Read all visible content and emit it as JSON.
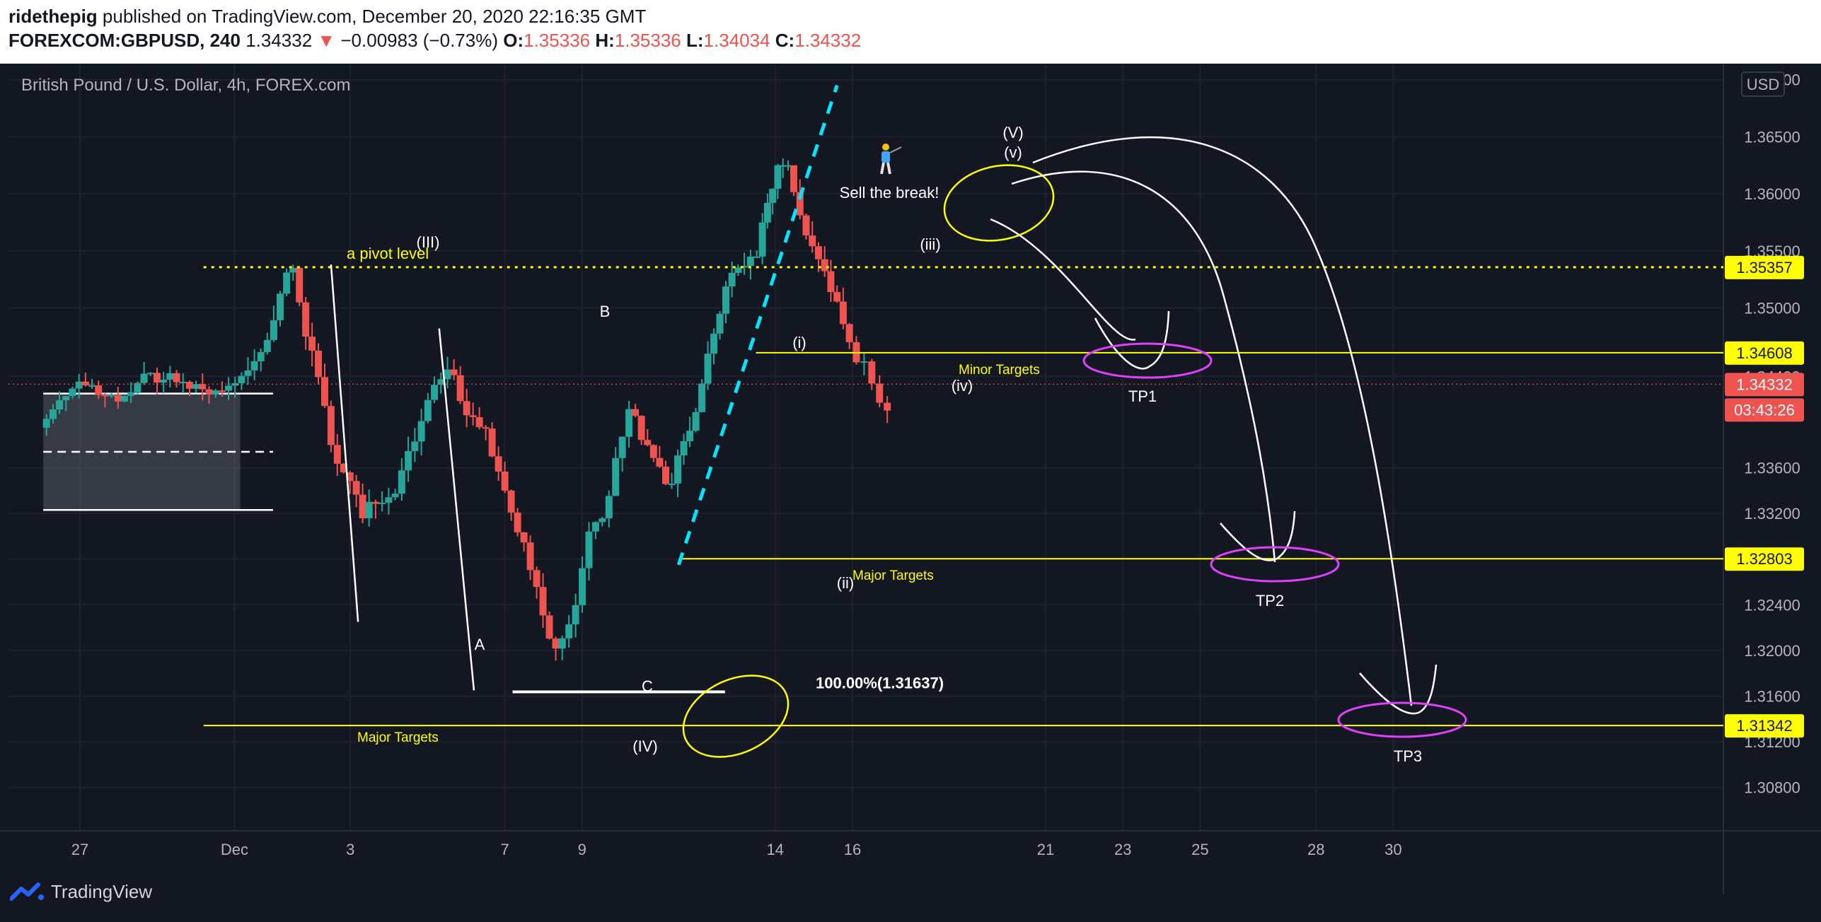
{
  "header": {
    "author": "ridethepig",
    "published": "published on TradingView.com, December 20, 2020 22:16:35 GMT",
    "symbol": "FOREXCOM:GBPUSD, 240",
    "last": "1.34332",
    "change_arrow": "▼",
    "change": "−0.00983 (−0.73%)",
    "o_label": "O:",
    "o_val": "1.35336",
    "h_label": "H:",
    "h_val": "1.35336",
    "l_label": "L:",
    "l_val": "1.34034",
    "c_label": "C:",
    "c_val": "1.34332"
  },
  "footer": {
    "brand": "TradingView",
    "logo_icon": "tradingview-logo-icon"
  },
  "colors": {
    "background": "#131722",
    "up": "#26a69a",
    "down": "#ef5350",
    "annotation": "#ffffff",
    "target": "#ffff00",
    "magenta": "#e040fb",
    "trend": "#00e5ff"
  },
  "chart_data": {
    "type": "candlestick",
    "title": "British Pound / U.S. Dollar, 4h, FOREX.com",
    "currency": "USD",
    "y_range": [
      1.3042,
      1.3714
    ],
    "y_ticks": [
      "1.37000",
      "1.36500",
      "1.36000",
      "1.35500",
      "1.35000",
      "1.34400",
      "1.33600",
      "1.33200",
      "1.32800",
      "1.32400",
      "1.32000",
      "1.31600",
      "1.31200",
      "1.30800"
    ],
    "x_ticks": [
      {
        "label": "27",
        "day": 0
      },
      {
        "label": "Dec",
        "day": 4
      },
      {
        "label": "3",
        "day": 7
      },
      {
        "label": "7",
        "day": 11
      },
      {
        "label": "9",
        "day": 13
      },
      {
        "label": "14",
        "day": 18
      },
      {
        "label": "16",
        "day": 20
      },
      {
        "label": "21",
        "day": 25
      },
      {
        "label": "23",
        "day": 27
      },
      {
        "label": "25",
        "day": 29
      },
      {
        "label": "28",
        "day": 32
      },
      {
        "label": "30",
        "day": 34
      }
    ],
    "price_labels": [
      {
        "text": "1.35357",
        "value": 1.35357,
        "kind": "pivot"
      },
      {
        "text": "1.34608",
        "value": 1.34608,
        "kind": "target"
      },
      {
        "text": "1.34332",
        "value": 1.34332,
        "kind": "last"
      },
      {
        "text": "03:43:26",
        "kind": "countdown"
      },
      {
        "text": "1.32803",
        "value": 1.32803,
        "kind": "target"
      },
      {
        "text": "1.31342",
        "value": 1.31342,
        "kind": "target"
      }
    ],
    "pivot_level": 1.35357,
    "target_levels": [
      1.34608,
      1.32803,
      1.31342
    ],
    "fib_level": 1.31637,
    "candle_segments": [
      {
        "from_day": -0.95,
        "to_day": 4.1,
        "n": 30,
        "start": 1.3395,
        "seed": 3,
        "volatility": 0.0018,
        "drift": 0.0,
        "lo": 1.3315,
        "hi": 1.3455
      },
      {
        "from_day": 4.1,
        "to_day": 5.6,
        "n": 9,
        "start": 1.341,
        "seed": 7,
        "volatility": 0.0022,
        "drift": 0.0014,
        "lo": 1.3405,
        "hi": 1.3535
      },
      {
        "from_day": 5.6,
        "to_day": 7.4,
        "n": 11,
        "start": 1.352,
        "seed": 11,
        "volatility": 0.0024,
        "drift": -0.0018,
        "lo": 1.3225,
        "hi": 1.3535
      },
      {
        "from_day": 7.4,
        "to_day": 9.6,
        "n": 13,
        "start": 1.327,
        "seed": 5,
        "volatility": 0.0022,
        "drift": 0.001,
        "lo": 1.326,
        "hi": 1.349
      },
      {
        "from_day": 9.6,
        "to_day": 12.4,
        "n": 17,
        "start": 1.347,
        "seed": 9,
        "volatility": 0.0022,
        "drift": -0.0013,
        "lo": 1.314,
        "hi": 1.348
      },
      {
        "from_day": 12.4,
        "to_day": 14.3,
        "n": 11,
        "start": 1.321,
        "seed": 2,
        "volatility": 0.0024,
        "drift": 0.002,
        "lo": 1.3185,
        "hi": 1.3445
      },
      {
        "from_day": 14.3,
        "to_day": 15.4,
        "n": 7,
        "start": 1.34,
        "seed": 13,
        "volatility": 0.0018,
        "drift": -0.0012,
        "lo": 1.3285,
        "hi": 1.341
      },
      {
        "from_day": 15.4,
        "to_day": 16.8,
        "n": 9,
        "start": 1.33,
        "seed": 17,
        "volatility": 0.0022,
        "drift": 0.0024,
        "lo": 1.329,
        "hi": 1.352
      },
      {
        "from_day": 16.8,
        "to_day": 17.6,
        "n": 5,
        "start": 1.3495,
        "seed": 19,
        "volatility": 0.002,
        "drift": 0.0008,
        "lo": 1.347,
        "hi": 1.3545
      },
      {
        "from_day": 17.6,
        "to_day": 18.4,
        "n": 6,
        "start": 1.351,
        "seed": 23,
        "volatility": 0.002,
        "drift": 0.0016,
        "lo": 1.35,
        "hi": 1.3625
      },
      {
        "from_day": 18.4,
        "to_day": 20.0,
        "n": 10,
        "start": 1.36,
        "seed": 29,
        "volatility": 0.0022,
        "drift": -0.0018,
        "lo": 1.347,
        "hi": 1.3615
      },
      {
        "from_day": 20.0,
        "to_day": 21.0,
        "n": 5,
        "start": 1.35,
        "seed": 31,
        "volatility": 0.0022,
        "drift": -0.001,
        "lo": 1.34,
        "hi": 1.354
      }
    ],
    "annotations": {
      "pivot_text": "a pivot level",
      "waves": [
        "(III)",
        "A",
        "B",
        "C",
        "(IV)",
        "(i)",
        "(ii)",
        "(iii)",
        "(iv)",
        "(v)",
        "(V)"
      ],
      "sell": "Sell the break!",
      "sell_icon": "golfer-icon",
      "minor_targets": "Minor Targets",
      "major_targets": "Major Targets",
      "fib_label": "100.00%(1.31637)",
      "targets": [
        "TP1",
        "TP2",
        "TP3"
      ]
    }
  }
}
